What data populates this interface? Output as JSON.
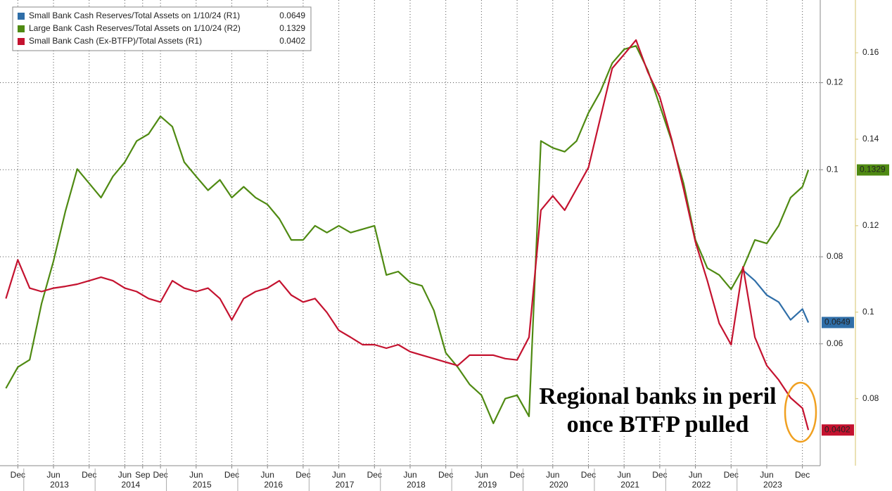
{
  "chart_data": {
    "type": "line",
    "annotation": [
      "Regional banks in peril",
      "once BTFP pulled"
    ],
    "x": [
      "2012-10",
      "2012-12",
      "2013-02",
      "2013-04",
      "2013-06",
      "2013-08",
      "2013-10",
      "2013-12",
      "2014-02",
      "2014-04",
      "2014-06",
      "2014-08",
      "2014-10",
      "2014-12",
      "2015-02",
      "2015-04",
      "2015-06",
      "2015-08",
      "2015-10",
      "2015-12",
      "2016-02",
      "2016-04",
      "2016-06",
      "2016-08",
      "2016-10",
      "2016-12",
      "2017-02",
      "2017-04",
      "2017-06",
      "2017-08",
      "2017-10",
      "2017-12",
      "2018-02",
      "2018-04",
      "2018-06",
      "2018-08",
      "2018-10",
      "2018-12",
      "2019-02",
      "2019-04",
      "2019-06",
      "2019-08",
      "2019-10",
      "2019-12",
      "2020-02",
      "2020-04",
      "2020-06",
      "2020-08",
      "2020-10",
      "2020-12",
      "2021-02",
      "2021-04",
      "2021-06",
      "2021-08",
      "2021-10",
      "2021-12",
      "2022-02",
      "2022-04",
      "2022-06",
      "2022-08",
      "2022-10",
      "2022-12",
      "2023-02",
      "2023-04",
      "2023-06",
      "2023-08",
      "2023-10",
      "2023-12",
      "2024-01"
    ],
    "series": [
      {
        "name": "Small Bank Cash Reserves/Total Assets on 1/10/24 (R1)",
        "color": "#2f6ea8",
        "axis": "y",
        "values": [
          null,
          null,
          null,
          null,
          null,
          null,
          null,
          null,
          null,
          null,
          null,
          null,
          null,
          null,
          null,
          null,
          null,
          null,
          null,
          null,
          null,
          null,
          null,
          null,
          null,
          null,
          null,
          null,
          null,
          null,
          null,
          null,
          null,
          null,
          null,
          null,
          null,
          null,
          null,
          null,
          null,
          null,
          null,
          null,
          null,
          null,
          null,
          null,
          null,
          null,
          null,
          null,
          null,
          null,
          null,
          null,
          null,
          null,
          null,
          null,
          null,
          null,
          0.0769,
          0.0745,
          0.0712,
          0.0696,
          0.0655,
          0.068,
          0.0649
        ]
      },
      {
        "name": "Large Bank Cash Reserves/Total Assets on 1/10/24 (R2)",
        "color": "#4f8a12",
        "axis": "y2",
        "values": [
          0.0824,
          0.0873,
          0.089,
          0.102,
          0.1118,
          0.1233,
          0.1331,
          0.1298,
          0.1265,
          0.1314,
          0.1347,
          0.1396,
          0.1412,
          0.1453,
          0.1429,
          0.1347,
          0.1314,
          0.1282,
          0.1306,
          0.1265,
          0.129,
          0.1265,
          0.1249,
          0.1216,
          0.1167,
          0.1167,
          0.12,
          0.1184,
          0.12,
          0.1184,
          0.1192,
          0.12,
          0.1086,
          0.1094,
          0.1069,
          0.1061,
          0.1004,
          0.0906,
          0.0873,
          0.0833,
          0.0808,
          0.0743,
          0.08,
          0.0808,
          0.0759,
          0.1396,
          0.138,
          0.1371,
          0.1396,
          0.1461,
          0.151,
          0.1576,
          0.1608,
          0.1616,
          0.1559,
          0.1478,
          0.1396,
          0.1298,
          0.1167,
          0.1102,
          0.1086,
          0.1053,
          0.1102,
          0.1167,
          0.1159,
          0.12,
          0.1265,
          0.129,
          0.1329
        ]
      },
      {
        "name": "Small Bank Cash (Ex-BTFP)/Total Assets (R1)",
        "color": "#c4122f",
        "axis": "y",
        "values": [
          0.0704,
          0.0793,
          0.0728,
          0.072,
          0.0728,
          0.0732,
          0.0737,
          0.0745,
          0.0753,
          0.0745,
          0.0728,
          0.072,
          0.0704,
          0.0696,
          0.0745,
          0.0728,
          0.072,
          0.0728,
          0.0704,
          0.0655,
          0.0704,
          0.072,
          0.0728,
          0.0745,
          0.0712,
          0.0696,
          0.0704,
          0.0672,
          0.0631,
          0.0615,
          0.0598,
          0.0598,
          0.059,
          0.0598,
          0.0582,
          0.0574,
          0.0566,
          0.0558,
          0.055,
          0.0574,
          0.0574,
          0.0574,
          0.0566,
          0.0563,
          0.0615,
          0.0907,
          0.094,
          0.0907,
          0.0956,
          0.1005,
          0.1119,
          0.1233,
          0.1265,
          0.1298,
          0.1224,
          0.1167,
          0.107,
          0.0956,
          0.0834,
          0.0745,
          0.0647,
          0.0598,
          0.0777,
          0.0615,
          0.055,
          0.0517,
          0.0476,
          0.0452,
          0.0402
        ]
      }
    ],
    "xlim": [
      "2012-09",
      "2024-03"
    ],
    "xticks": [
      {
        "value": "2012-12",
        "label": "Dec"
      },
      {
        "value": "2013-06",
        "label": "Jun"
      },
      {
        "value": "2013-12",
        "label": "Dec"
      },
      {
        "value": "2014-06",
        "label": "Jun"
      },
      {
        "value": "2014-09",
        "label": "Sep"
      },
      {
        "value": "2014-12",
        "label": "Dec"
      },
      {
        "value": "2015-06",
        "label": "Jun"
      },
      {
        "value": "2015-12",
        "label": "Dec"
      },
      {
        "value": "2016-06",
        "label": "Jun"
      },
      {
        "value": "2016-12",
        "label": "Dec"
      },
      {
        "value": "2017-06",
        "label": "Jun"
      },
      {
        "value": "2017-12",
        "label": "Dec"
      },
      {
        "value": "2018-06",
        "label": "Jun"
      },
      {
        "value": "2018-12",
        "label": "Dec"
      },
      {
        "value": "2019-06",
        "label": "Jun"
      },
      {
        "value": "2019-12",
        "label": "Dec"
      },
      {
        "value": "2020-06",
        "label": "Jun"
      },
      {
        "value": "2020-12",
        "label": "Dec"
      },
      {
        "value": "2021-06",
        "label": "Jun"
      },
      {
        "value": "2021-12",
        "label": "Dec"
      },
      {
        "value": "2022-06",
        "label": "Jun"
      },
      {
        "value": "2022-12",
        "label": "Dec"
      },
      {
        "value": "2023-06",
        "label": "Jun"
      },
      {
        "value": "2023-12",
        "label": "Dec"
      }
    ],
    "year_ticks": [
      2013,
      2014,
      2015,
      2016,
      2017,
      2018,
      2019,
      2020,
      2021,
      2022,
      2023
    ],
    "ylim": [
      0.032,
      0.139
    ],
    "yticks": [
      0.06,
      0.08,
      0.1,
      0.12
    ],
    "y2lim": [
      0.0645,
      0.1722
    ],
    "y2ticks": [
      0.08,
      0.1,
      0.12,
      0.14,
      0.16
    ],
    "grid": true,
    "legend": "top-left"
  }
}
